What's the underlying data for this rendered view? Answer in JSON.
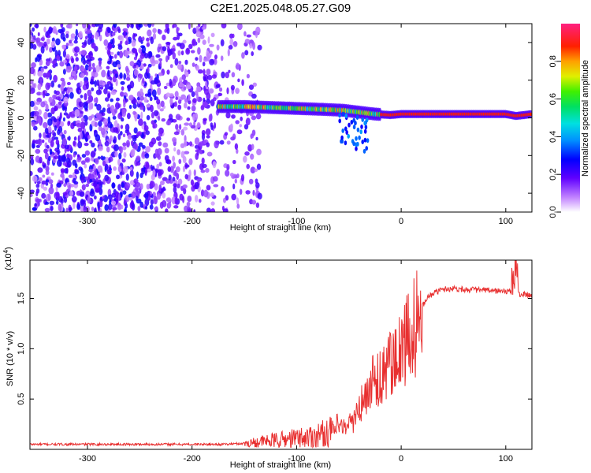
{
  "figure": {
    "title": "C2E1.2025.048.05.27.G09"
  },
  "chart_data": [
    {
      "type": "heatmap",
      "xlabel": "Height of straight line (km)",
      "ylabel": "Frequency (Hz)",
      "xlim": [
        -355,
        125
      ],
      "ylim": [
        -50,
        50
      ],
      "xticks": [
        -300,
        -200,
        -100,
        0,
        100
      ],
      "yticks": [
        -40,
        -20,
        0,
        20,
        40
      ],
      "grid": false,
      "colorbar": {
        "label": "Normalized spectral amplitude",
        "range": [
          0,
          1
        ],
        "ticks": [
          "0.0",
          "0.2",
          "0.4",
          "0.6",
          "0.8"
        ]
      },
      "ridge": [
        {
          "x": -175,
          "freq": 6
        },
        {
          "x": -150,
          "freq": 6
        },
        {
          "x": -125,
          "freq": 5.5
        },
        {
          "x": -100,
          "freq": 5
        },
        {
          "x": -75,
          "freq": 4.5
        },
        {
          "x": -55,
          "freq": 4
        },
        {
          "x": -40,
          "freq": 3
        },
        {
          "x": -25,
          "freq": 2
        },
        {
          "x": -10,
          "freq": 1.5
        },
        {
          "x": 0,
          "freq": 2
        },
        {
          "x": 25,
          "freq": 2
        },
        {
          "x": 50,
          "freq": 2
        },
        {
          "x": 80,
          "freq": 2
        },
        {
          "x": 100,
          "freq": 2
        },
        {
          "x": 110,
          "freq": 1
        },
        {
          "x": 125,
          "freq": 2
        }
      ]
    },
    {
      "type": "line",
      "ylabel": "SNR (10 * v/v)",
      "xlabel": "Height of straight line (km)",
      "y_multiplier": "(x10^4)",
      "xlim": [
        -355,
        125
      ],
      "ylim": [
        0,
        1.88
      ],
      "xticks": [
        -300,
        -200,
        -100,
        0,
        100
      ],
      "yticks": [
        0.5,
        1.0,
        1.5
      ],
      "grid": false,
      "color": "#e83030",
      "series": [
        {
          "x": [
            -355,
            -300,
            -250,
            -200,
            -170,
            -150,
            -130,
            -110,
            -100,
            -90,
            -80,
            -70,
            -60,
            -50,
            -45,
            -40,
            -35,
            -30,
            -25,
            -20,
            -15,
            -10,
            -5,
            0,
            5,
            10,
            15,
            20,
            25,
            30,
            40,
            50,
            60,
            80,
            100,
            105,
            108,
            110,
            112,
            115,
            125
          ],
          "y": [
            0.05,
            0.05,
            0.05,
            0.05,
            0.05,
            0.06,
            0.08,
            0.1,
            0.11,
            0.12,
            0.14,
            0.17,
            0.2,
            0.25,
            0.3,
            0.4,
            0.5,
            0.62,
            0.7,
            0.75,
            0.8,
            0.82,
            0.86,
            0.95,
            1.05,
            1.15,
            1.3,
            1.42,
            1.5,
            1.55,
            1.59,
            1.6,
            1.59,
            1.58,
            1.57,
            1.56,
            1.62,
            1.82,
            1.55,
            1.54,
            1.53
          ]
        }
      ]
    }
  ]
}
